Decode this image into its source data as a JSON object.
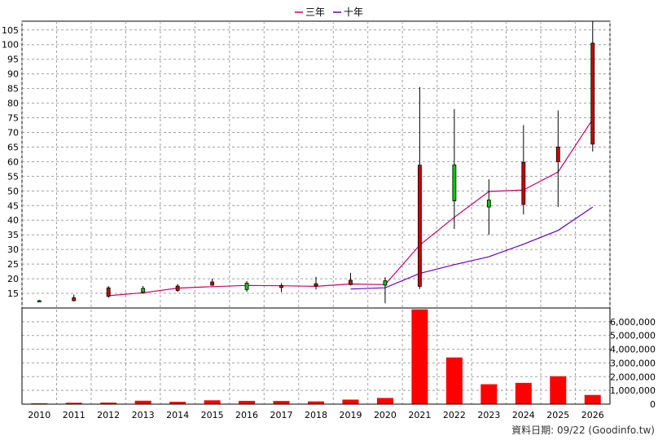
{
  "chart_data": [
    {
      "type": "candlestick",
      "ylim": [
        10,
        108
      ],
      "yticks": [
        15,
        20,
        25,
        30,
        35,
        40,
        45,
        50,
        55,
        60,
        65,
        70,
        75,
        80,
        85,
        90,
        95,
        100,
        105
      ],
      "categories": [
        "2010",
        "2011",
        "2012",
        "2013",
        "2014",
        "2015",
        "2016",
        "2017",
        "2018",
        "2019",
        "2020",
        "2021",
        "2022",
        "2023",
        "2024",
        "2025",
        "2026"
      ],
      "ohlc": [
        {
          "open": 12.4,
          "high": 12.8,
          "low": 12.0,
          "close": 12.5
        },
        {
          "open": 13.5,
          "high": 14.6,
          "low": 12.3,
          "close": 12.5
        },
        {
          "open": 16.9,
          "high": 17.5,
          "low": 13.5,
          "close": 14.0
        },
        {
          "open": 15.4,
          "high": 17.5,
          "low": 14.8,
          "close": 16.7
        },
        {
          "open": 17.5,
          "high": 18.2,
          "low": 15.5,
          "close": 16.0
        },
        {
          "open": 18.9,
          "high": 20.0,
          "low": 17.6,
          "close": 17.8
        },
        {
          "open": 16.3,
          "high": 19.2,
          "low": 15.5,
          "close": 18.5
        },
        {
          "open": 17.7,
          "high": 18.5,
          "low": 15.4,
          "close": 17.0
        },
        {
          "open": 18.3,
          "high": 20.6,
          "low": 16.3,
          "close": 17.5
        },
        {
          "open": 19.5,
          "high": 22.0,
          "low": 17.7,
          "close": 18.0
        },
        {
          "open": 17.8,
          "high": 20.5,
          "low": 11.6,
          "close": 19.3
        },
        {
          "open": 58.8,
          "high": 85.5,
          "low": 16.5,
          "close": 17.4
        },
        {
          "open": 46.6,
          "high": 78.0,
          "low": 37.0,
          "close": 58.9
        },
        {
          "open": 44.5,
          "high": 54.0,
          "low": 35.0,
          "close": 46.9
        },
        {
          "open": 59.8,
          "high": 72.5,
          "low": 42.0,
          "close": 45.4
        },
        {
          "open": 65.0,
          "high": 77.5,
          "low": 44.5,
          "close": 60.0
        },
        {
          "open": 100.5,
          "high": 108.0,
          "low": 63.5,
          "close": 66.0
        }
      ],
      "series": [
        {
          "name": "三年",
          "color": "#cc0066",
          "x": [
            "2012",
            "2013",
            "2014",
            "2015",
            "2016",
            "2017",
            "2018",
            "2019",
            "2020",
            "2021",
            "2022",
            "2023",
            "2024",
            "2025",
            "2026"
          ],
          "values": [
            14.2,
            15.2,
            16.8,
            17.3,
            17.7,
            17.6,
            17.4,
            18.2,
            18.0,
            31.5,
            41.0,
            49.8,
            50.3,
            56.5,
            74.5
          ]
        },
        {
          "name": "十年",
          "color": "#6600cc",
          "x": [
            "2019",
            "2020",
            "2021",
            "2022",
            "2023",
            "2024",
            "2025",
            "2026"
          ],
          "values": [
            16.5,
            16.9,
            21.8,
            24.8,
            27.5,
            31.8,
            36.5,
            44.5
          ]
        }
      ],
      "legend_position": "top-center",
      "grid": true
    },
    {
      "type": "bar",
      "categories": [
        "2010",
        "2011",
        "2012",
        "2013",
        "2014",
        "2015",
        "2016",
        "2017",
        "2018",
        "2019",
        "2020",
        "2021",
        "2022",
        "2023",
        "2024",
        "2025",
        "2026"
      ],
      "values": [
        60000,
        100000,
        110000,
        250000,
        170000,
        280000,
        240000,
        230000,
        200000,
        330000,
        450000,
        6900000,
        3400000,
        1450000,
        1550000,
        2030000,
        670000
      ],
      "ylim": [
        0,
        7000000
      ],
      "ytick_labels": [
        "6,000,000",
        "5,000,000",
        "4,000,000",
        "3,000,000",
        "2,000,000",
        "1,000,000",
        "0"
      ],
      "yticks": [
        6000000,
        5000000,
        4000000,
        3000000,
        2000000,
        1000000,
        0
      ],
      "color": "#ff0000",
      "grid": true
    }
  ],
  "footer": {
    "source": "資料日期: 09/22  (Goodinfo.tw)"
  }
}
